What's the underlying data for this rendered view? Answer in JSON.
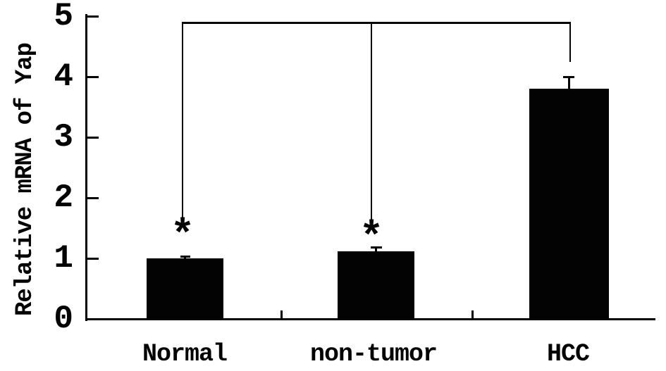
{
  "figure": {
    "background": "#ffffff",
    "ink_color": "#030303"
  },
  "chart_data": {
    "type": "bar",
    "title": "",
    "ylabel": "Relative mRNA of Yap",
    "xlabel": "",
    "categories": [
      "Normal",
      "non-tumor",
      "HCC"
    ],
    "values": [
      1.0,
      1.12,
      3.8
    ],
    "error_bars": [
      0.04,
      0.07,
      0.2
    ],
    "ylim": [
      0,
      5
    ],
    "yticks": [
      0,
      1,
      2,
      3,
      4,
      5
    ],
    "bar_color": "#030303",
    "grid": false,
    "legend": "none",
    "annotations": {
      "significance_symbol": "*",
      "starred_categories": [
        "Normal",
        "non-tumor"
      ],
      "comparison_bracket": {
        "top_value": 4.9,
        "connects": [
          "Normal",
          "non-tumor",
          "HCC"
        ]
      }
    }
  }
}
